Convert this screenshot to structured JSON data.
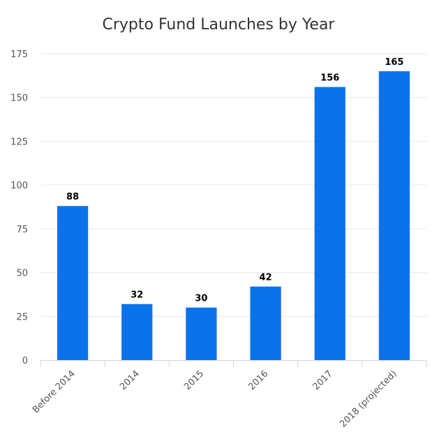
{
  "chart_data": {
    "type": "bar",
    "title": "Crypto Fund Launches by Year",
    "categories": [
      "Before 2014",
      "2014",
      "2015",
      "2016",
      "2017",
      "2018 (projected)"
    ],
    "values": [
      88,
      32,
      30,
      42,
      156,
      165
    ],
    "xlabel": "",
    "ylabel": "",
    "ylim": [
      0,
      175
    ],
    "yticks": [
      0,
      25,
      50,
      75,
      100,
      125,
      150,
      175
    ],
    "grid": true,
    "legend": "none",
    "bar_color": "#0a73eb"
  }
}
